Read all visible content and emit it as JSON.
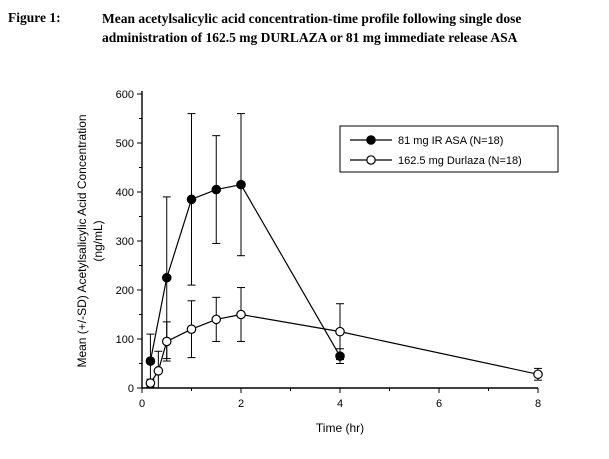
{
  "figure": {
    "label": "Figure 1:",
    "title_line1": "Mean acetylsalicylic acid concentration-time profile following single dose",
    "title_line2": "administration of 162.5 mg DURLAZA or 81 mg immediate release ASA"
  },
  "chart_data": {
    "type": "line",
    "title": "",
    "xlabel": "Time (hr)",
    "ylabel_line1": "Mean (+/-SD) Acetylsalicylic Acid Concentration",
    "ylabel_line2": "(ng/mL)",
    "xlim": [
      0,
      8
    ],
    "ylim": [
      0,
      600
    ],
    "x_major_ticks": [
      0,
      2,
      4,
      6,
      8
    ],
    "x_minor_ticks": [
      1,
      3,
      5,
      7
    ],
    "y_major_ticks": [
      0,
      100,
      200,
      300,
      400,
      500,
      600
    ],
    "y_minor_step": 50,
    "grid": false,
    "legend_position": "upper-right-inside",
    "axis_color": "#000000",
    "series": [
      {
        "name": "81 mg IR ASA (N=18)",
        "marker": "filled-circle",
        "color": "#000000",
        "x": [
          0.17,
          0.5,
          1,
          1.5,
          2,
          4
        ],
        "y": [
          55,
          225,
          385,
          405,
          415,
          65
        ],
        "sd": [
          55,
          165,
          175,
          110,
          145,
          15
        ]
      },
      {
        "name": "162.5 mg Durlaza (N=18)",
        "marker": "open-circle",
        "color": "#000000",
        "x": [
          0.17,
          0.33,
          0.5,
          1,
          1.5,
          2,
          4,
          8
        ],
        "y": [
          10,
          35,
          95,
          120,
          140,
          150,
          115,
          28
        ],
        "sd": [
          8,
          40,
          40,
          58,
          45,
          55,
          57,
          12
        ]
      }
    ]
  }
}
